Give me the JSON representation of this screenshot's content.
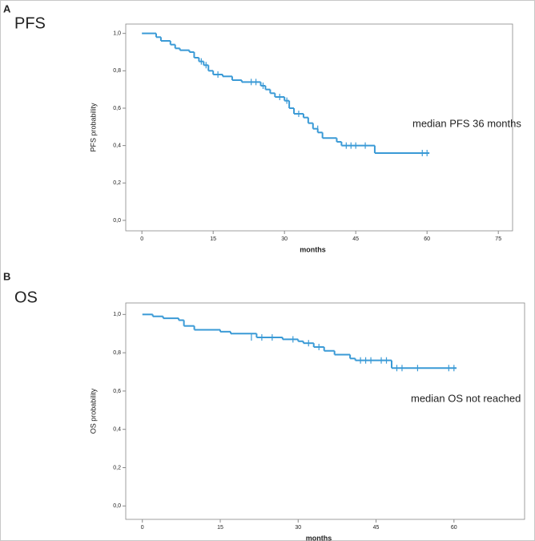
{
  "chart_data": [
    {
      "type": "step",
      "panel": "A",
      "label": "PFS",
      "annotation": "median PFS 36 months",
      "x_label": "months",
      "y_label": "PFS probability",
      "color": "#3a9ad6",
      "xlim": [
        -3.4,
        78
      ],
      "ylim": [
        -0.056,
        1.05
      ],
      "xticks": [
        0,
        15,
        30,
        45,
        60,
        75
      ],
      "yticks": [
        {
          "value": 0.0,
          "label": "0,0"
        },
        {
          "value": 0.2,
          "label": "0,2"
        },
        {
          "value": 0.4,
          "label": "0,4"
        },
        {
          "value": 0.6,
          "label": "0,6"
        },
        {
          "value": 0.8,
          "label": "0,8"
        },
        {
          "value": 1.0,
          "label": "1,0"
        }
      ],
      "x": [
        0,
        3,
        4,
        6,
        7,
        8,
        10,
        11,
        12,
        13,
        14,
        15,
        17,
        19,
        21,
        25,
        26,
        27,
        28,
        30,
        31,
        32,
        34,
        35,
        36,
        37,
        38,
        41,
        42,
        49,
        60.5
      ],
      "values": [
        1.0,
        0.98,
        0.96,
        0.94,
        0.92,
        0.91,
        0.9,
        0.87,
        0.85,
        0.83,
        0.8,
        0.78,
        0.77,
        0.75,
        0.74,
        0.72,
        0.7,
        0.68,
        0.66,
        0.64,
        0.6,
        0.57,
        0.55,
        0.52,
        0.49,
        0.47,
        0.44,
        0.42,
        0.4,
        0.36,
        0.36
      ],
      "censored": {
        "x": [
          12.5,
          13.5,
          16,
          23,
          24,
          25.5,
          29,
          30.5,
          33,
          37,
          43,
          44,
          45,
          47,
          59,
          60
        ],
        "values": [
          0.85,
          0.83,
          0.78,
          0.74,
          0.74,
          0.72,
          0.66,
          0.64,
          0.57,
          0.49,
          0.4,
          0.4,
          0.4,
          0.4,
          0.36,
          0.36
        ]
      }
    },
    {
      "type": "step",
      "panel": "B",
      "label": "OS",
      "annotation": "median OS not reached",
      "x_label": "months",
      "y_label": "OS probability",
      "color": "#3a9ad6",
      "xlim": [
        -3.2,
        73.6
      ],
      "ylim": [
        -0.07,
        1.06
      ],
      "xticks": [
        0,
        15,
        30,
        45,
        60
      ],
      "yticks": [
        {
          "value": 0.0,
          "label": "0,0"
        },
        {
          "value": 0.2,
          "label": "0,2"
        },
        {
          "value": 0.4,
          "label": "0,4"
        },
        {
          "value": 0.6,
          "label": "0,6"
        },
        {
          "value": 0.8,
          "label": "0,8"
        },
        {
          "value": 1.0,
          "label": "1,0"
        }
      ],
      "x": [
        0,
        2,
        4,
        7,
        8,
        10,
        15,
        17,
        22,
        27,
        30,
        31,
        33,
        35,
        37,
        40,
        41,
        48,
        60.5
      ],
      "values": [
        1.0,
        0.99,
        0.98,
        0.97,
        0.94,
        0.92,
        0.91,
        0.9,
        0.88,
        0.87,
        0.86,
        0.85,
        0.83,
        0.81,
        0.79,
        0.77,
        0.76,
        0.72,
        0.72
      ],
      "censored": {
        "x": [
          21,
          23,
          25,
          29,
          32,
          34,
          42,
          43,
          44,
          46,
          47,
          49,
          50,
          53,
          59,
          60
        ],
        "values": [
          0.88,
          0.88,
          0.88,
          0.87,
          0.85,
          0.83,
          0.76,
          0.76,
          0.76,
          0.76,
          0.76,
          0.72,
          0.72,
          0.72,
          0.72,
          0.72
        ]
      }
    }
  ]
}
